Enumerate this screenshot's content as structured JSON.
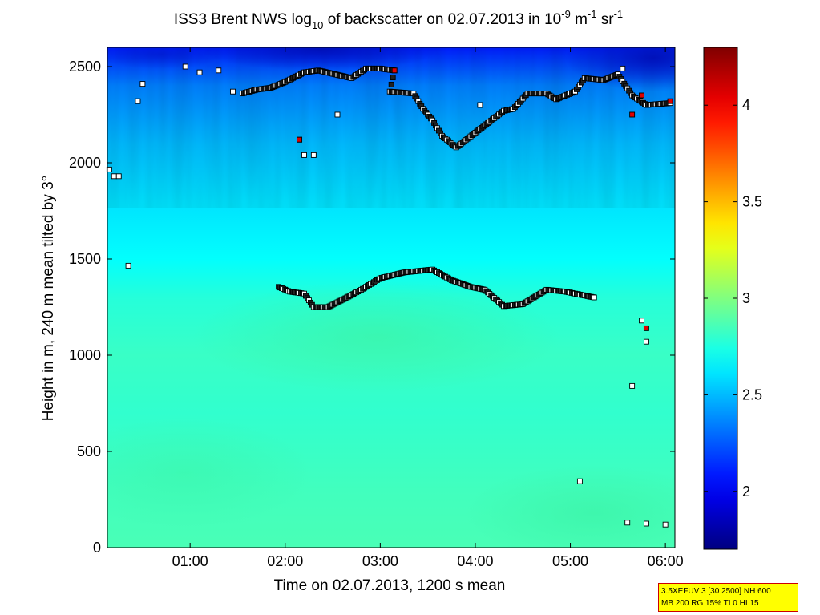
{
  "chart_data": {
    "type": "heatmap",
    "title": {
      "p1": "ISS3 Brent NWS log",
      "sub1": "10",
      "p2": " of backscatter on 02.07.2013 in 10",
      "sup1": "-9",
      "p3": " m",
      "sup2": "-1",
      "p4": " sr",
      "sup3": "-1"
    },
    "xlabel": "Time on 02.07.2013, 1200 s mean",
    "ylabel": "Height in m, 240 m mean tilted by 3°",
    "xlim_hours": [
      0.13,
      6.1
    ],
    "ylim": [
      0,
      2600
    ],
    "x_ticks": [
      {
        "v": 1,
        "label": "01:00"
      },
      {
        "v": 2,
        "label": "02:00"
      },
      {
        "v": 3,
        "label": "03:00"
      },
      {
        "v": 4,
        "label": "04:00"
      },
      {
        "v": 5,
        "label": "05:00"
      },
      {
        "v": 6,
        "label": "06:00"
      }
    ],
    "y_ticks": [
      {
        "v": 0,
        "label": "0"
      },
      {
        "v": 500,
        "label": "500"
      },
      {
        "v": 1000,
        "label": "1000"
      },
      {
        "v": 1500,
        "label": "1500"
      },
      {
        "v": 2000,
        "label": "2000"
      },
      {
        "v": 2500,
        "label": "2500"
      }
    ],
    "colorbar": {
      "colormap": "jet",
      "clim": [
        1.7,
        4.3
      ],
      "ticks": [
        {
          "v": 2,
          "label": "2"
        },
        {
          "v": 2.5,
          "label": "2.5"
        },
        {
          "v": 3,
          "label": "3"
        },
        {
          "v": 3.5,
          "label": "3.5"
        },
        {
          "v": 4,
          "label": "4"
        }
      ]
    },
    "field_profile": {
      "heights_m": [
        0,
        300,
        700,
        1000,
        1300,
        1500,
        1800,
        2100,
        2400,
        2600
      ],
      "log_backscatter": [
        2.86,
        2.84,
        2.8,
        2.82,
        2.77,
        2.68,
        2.6,
        2.5,
        2.35,
        2.1
      ]
    },
    "layer_detections": [
      {
        "name": "mid layer",
        "points": [
          [
            1.93,
            1355
          ],
          [
            2.05,
            1330
          ],
          [
            2.2,
            1320
          ],
          [
            2.3,
            1250
          ],
          [
            2.45,
            1250
          ],
          [
            2.65,
            1300
          ],
          [
            2.8,
            1340
          ],
          [
            3.0,
            1400
          ],
          [
            3.25,
            1430
          ],
          [
            3.55,
            1445
          ],
          [
            3.75,
            1390
          ],
          [
            3.95,
            1355
          ],
          [
            4.1,
            1340
          ],
          [
            4.3,
            1255
          ],
          [
            4.5,
            1265
          ],
          [
            4.65,
            1310
          ],
          [
            4.75,
            1340
          ],
          [
            4.95,
            1330
          ],
          [
            5.1,
            1315
          ],
          [
            5.25,
            1300
          ]
        ]
      },
      {
        "name": "upper layer",
        "points": [
          [
            1.55,
            2360
          ],
          [
            1.7,
            2380
          ],
          [
            1.85,
            2390
          ],
          [
            2.0,
            2420
          ],
          [
            2.2,
            2470
          ],
          [
            2.35,
            2480
          ],
          [
            2.7,
            2440
          ],
          [
            2.85,
            2490
          ],
          [
            3.0,
            2490
          ],
          [
            3.15,
            2480
          ],
          [
            3.1,
            2370
          ],
          [
            3.35,
            2360
          ],
          [
            3.45,
            2280
          ],
          [
            3.55,
            2220
          ],
          [
            3.65,
            2140
          ],
          [
            3.8,
            2080
          ],
          [
            4.3,
            2270
          ],
          [
            4.4,
            2280
          ],
          [
            4.55,
            2360
          ],
          [
            4.75,
            2360
          ],
          [
            4.85,
            2330
          ],
          [
            5.05,
            2370
          ],
          [
            5.15,
            2440
          ],
          [
            5.35,
            2430
          ],
          [
            5.5,
            2460
          ],
          [
            5.65,
            2350
          ],
          [
            5.8,
            2300
          ],
          [
            6.05,
            2310
          ]
        ]
      },
      {
        "name": "scattered",
        "points": [
          [
            0.15,
            1965
          ],
          [
            0.2,
            1930
          ],
          [
            0.25,
            1930
          ],
          [
            0.35,
            1465
          ],
          [
            0.45,
            2320
          ],
          [
            0.5,
            2410
          ],
          [
            0.95,
            2500
          ],
          [
            1.1,
            2470
          ],
          [
            1.3,
            2480
          ],
          [
            1.45,
            2370
          ],
          [
            2.15,
            2120
          ],
          [
            2.2,
            2040
          ],
          [
            2.3,
            2040
          ],
          [
            2.55,
            2250
          ],
          [
            4.05,
            2300
          ],
          [
            5.55,
            2490
          ],
          [
            5.75,
            1180
          ],
          [
            5.8,
            1070
          ],
          [
            5.65,
            840
          ],
          [
            5.1,
            345
          ],
          [
            5.6,
            130
          ],
          [
            5.8,
            125
          ],
          [
            6.0,
            120
          ]
        ]
      }
    ]
  },
  "info_box": {
    "line1": "3.5XEFUV 3 [30 2500] NH 600",
    "line2": "MB 200 RG 15% TI 0 HI 15"
  }
}
